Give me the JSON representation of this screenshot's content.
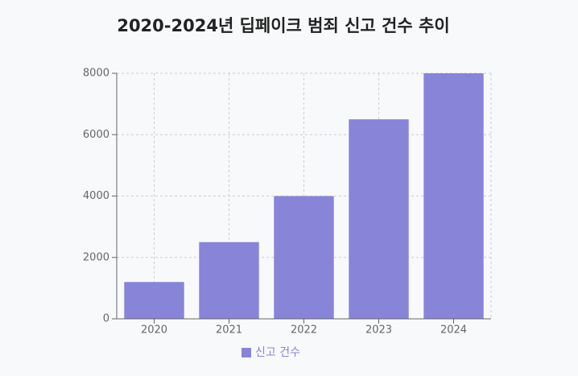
{
  "chart_data": {
    "type": "bar",
    "title": "2020-2024년 딥페이크 범죄 신고 건수 추이",
    "categories": [
      "2020",
      "2021",
      "2022",
      "2023",
      "2024"
    ],
    "series": [
      {
        "name": "신고 건수",
        "color": "#8884d8",
        "values": [
          1200,
          2500,
          4000,
          6500,
          8000
        ]
      }
    ],
    "ylim": [
      0,
      8000
    ],
    "yticks": [
      0,
      2000,
      4000,
      6000,
      8000
    ],
    "grid": true,
    "legend": "bottom"
  }
}
